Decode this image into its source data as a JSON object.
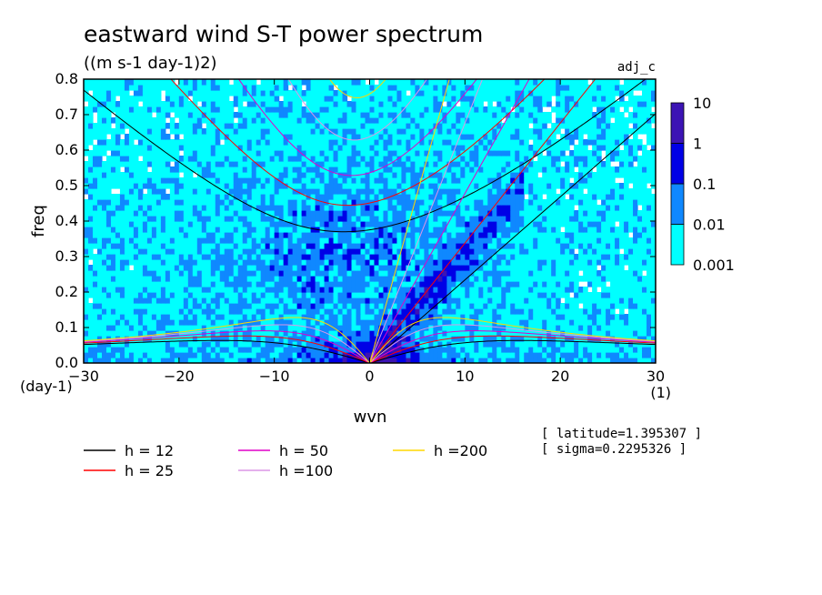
{
  "chart_data": {
    "type": "heatmap",
    "title": "eastward wind S-T power spectrum",
    "subtitle": "((m s-1 day-1)2)",
    "tag": "adj_c",
    "xlabel": "wvn",
    "ylabel": "freq",
    "xunit": "(1)",
    "yunit": "(day-1)",
    "xlim": [
      -30,
      30
    ],
    "ylim": [
      0,
      0.8
    ],
    "xticks": [
      -30,
      -20,
      -10,
      0,
      10,
      20,
      30
    ],
    "yticks": [
      0.0,
      0.1,
      0.2,
      0.3,
      0.4,
      0.5,
      0.6,
      0.7,
      0.8
    ],
    "colorbar": {
      "levels": [
        0.001,
        0.01,
        0.1,
        1,
        10
      ],
      "level_labels": [
        "0.001",
        "0.01",
        "0.1",
        "1",
        "10"
      ],
      "colors": [
        "#00ffff",
        "#0f88ff",
        "#0000e6",
        "#3c14b4"
      ]
    },
    "dispersion_curves": [
      {
        "label": "h = 12",
        "color": "#000000",
        "h": 12
      },
      {
        "label": "h = 25",
        "color": "#ff0000",
        "h": 25
      },
      {
        "label": "h = 50",
        "color": "#e100c8",
        "h": 50
      },
      {
        "label": "h =100",
        "color": "#dc96e6",
        "h": 100
      },
      {
        "label": "h =200",
        "color": "#ffd700",
        "h": 200
      }
    ],
    "annotations": [
      "[ latitude=1.395307 ]",
      "[ sigma=0.2295326 ]"
    ]
  }
}
